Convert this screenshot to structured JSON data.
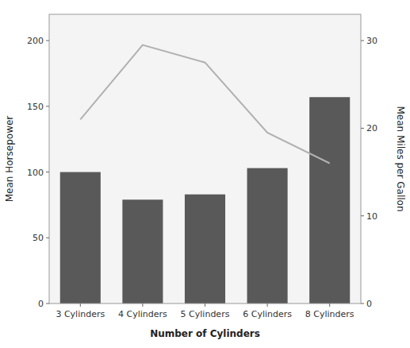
{
  "chart_data": {
    "type": "bar",
    "xlabel": "Number of Cylinders",
    "ylabel": "Mean Horsepower",
    "y2label": "Mean Miles per Gallon",
    "categories": [
      "3 Cylinders",
      "4 Cylinders",
      "5 Cylinders",
      "6 Cylinders",
      "8 Cylinders"
    ],
    "series": [
      {
        "type": "bar",
        "color": "#595959",
        "values": [
          100,
          79,
          83,
          103,
          157
        ]
      },
      {
        "type": "line",
        "axis": "y2",
        "color": "#b0b0b0",
        "values": [
          21.0,
          29.5,
          27.5,
          19.5,
          16.0
        ]
      }
    ],
    "ylim": [
      0,
      220
    ],
    "yticks": [
      0,
      50,
      100,
      150,
      200
    ],
    "y2lim": [
      0,
      33
    ],
    "y2ticks": [
      0,
      10,
      20,
      30
    ],
    "grid": false
  }
}
